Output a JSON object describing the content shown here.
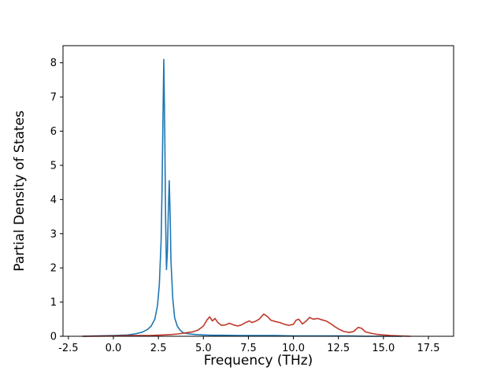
{
  "chart_data": {
    "type": "line",
    "title": "",
    "xlabel": "Frequency (THz)",
    "ylabel": "Partial Density of States",
    "xlim": [
      -2.8,
      18.9
    ],
    "ylim": [
      0,
      8.5
    ],
    "grid": false,
    "legend_position": "none",
    "xticks": [
      -2.5,
      0.0,
      2.5,
      5.0,
      7.5,
      10.0,
      12.5,
      15.0,
      17.5
    ],
    "xtick_labels": [
      "-2.5",
      "0.0",
      "2.5",
      "5.0",
      "7.5",
      "10.0",
      "12.5",
      "15.0",
      "17.5"
    ],
    "yticks": [
      0,
      1,
      2,
      3,
      4,
      5,
      6,
      7,
      8
    ],
    "ytick_labels": [
      "0",
      "1",
      "2",
      "3",
      "4",
      "5",
      "6",
      "7",
      "8"
    ],
    "colors": {
      "series_blue": "#1f77b4",
      "series_red": "#c0392b",
      "axis": "#000000"
    },
    "series": [
      {
        "name": "blue",
        "color": "#1f77b4",
        "points": [
          [
            -1.7,
            0.0
          ],
          [
            -1.0,
            0.01
          ],
          [
            0.0,
            0.02
          ],
          [
            0.8,
            0.04
          ],
          [
            1.2,
            0.07
          ],
          [
            1.6,
            0.12
          ],
          [
            1.9,
            0.2
          ],
          [
            2.1,
            0.3
          ],
          [
            2.3,
            0.5
          ],
          [
            2.45,
            0.9
          ],
          [
            2.55,
            1.5
          ],
          [
            2.65,
            2.8
          ],
          [
            2.7,
            4.2
          ],
          [
            2.75,
            6.3
          ],
          [
            2.8,
            8.1
          ],
          [
            2.85,
            6.2
          ],
          [
            2.9,
            3.4
          ],
          [
            2.95,
            1.95
          ],
          [
            3.0,
            2.5
          ],
          [
            3.05,
            3.6
          ],
          [
            3.1,
            4.55
          ],
          [
            3.15,
            3.6
          ],
          [
            3.2,
            2.2
          ],
          [
            3.3,
            1.1
          ],
          [
            3.4,
            0.55
          ],
          [
            3.55,
            0.3
          ],
          [
            3.7,
            0.18
          ],
          [
            3.9,
            0.1
          ],
          [
            4.2,
            0.07
          ],
          [
            4.6,
            0.05
          ],
          [
            5.0,
            0.04
          ],
          [
            5.5,
            0.03
          ],
          [
            6.0,
            0.03
          ],
          [
            7.0,
            0.02
          ],
          [
            8.0,
            0.02
          ],
          [
            9.0,
            0.02
          ],
          [
            10.0,
            0.01
          ],
          [
            11.0,
            0.01
          ],
          [
            12.0,
            0.01
          ],
          [
            13.0,
            0.01
          ],
          [
            14.0,
            0.0
          ],
          [
            15.0,
            0.0
          ],
          [
            16.0,
            0.0
          ]
        ]
      },
      {
        "name": "red",
        "color": "#c0392b",
        "points": [
          [
            -1.7,
            0.0
          ],
          [
            0.0,
            0.01
          ],
          [
            1.0,
            0.02
          ],
          [
            2.0,
            0.02
          ],
          [
            2.8,
            0.04
          ],
          [
            3.2,
            0.05
          ],
          [
            3.6,
            0.07
          ],
          [
            4.0,
            0.1
          ],
          [
            4.4,
            0.13
          ],
          [
            4.7,
            0.18
          ],
          [
            5.0,
            0.3
          ],
          [
            5.2,
            0.48
          ],
          [
            5.35,
            0.57
          ],
          [
            5.5,
            0.45
          ],
          [
            5.65,
            0.52
          ],
          [
            5.8,
            0.4
          ],
          [
            6.0,
            0.32
          ],
          [
            6.2,
            0.33
          ],
          [
            6.45,
            0.38
          ],
          [
            6.7,
            0.33
          ],
          [
            6.9,
            0.3
          ],
          [
            7.1,
            0.33
          ],
          [
            7.35,
            0.4
          ],
          [
            7.55,
            0.45
          ],
          [
            7.7,
            0.4
          ],
          [
            7.9,
            0.44
          ],
          [
            8.1,
            0.5
          ],
          [
            8.35,
            0.65
          ],
          [
            8.55,
            0.58
          ],
          [
            8.75,
            0.47
          ],
          [
            9.0,
            0.43
          ],
          [
            9.25,
            0.4
          ],
          [
            9.5,
            0.35
          ],
          [
            9.75,
            0.32
          ],
          [
            10.0,
            0.35
          ],
          [
            10.15,
            0.47
          ],
          [
            10.3,
            0.5
          ],
          [
            10.5,
            0.36
          ],
          [
            10.7,
            0.44
          ],
          [
            10.9,
            0.55
          ],
          [
            11.1,
            0.5
          ],
          [
            11.35,
            0.52
          ],
          [
            11.6,
            0.48
          ],
          [
            11.85,
            0.44
          ],
          [
            12.1,
            0.36
          ],
          [
            12.3,
            0.28
          ],
          [
            12.55,
            0.2
          ],
          [
            12.8,
            0.14
          ],
          [
            13.1,
            0.11
          ],
          [
            13.35,
            0.14
          ],
          [
            13.6,
            0.26
          ],
          [
            13.8,
            0.23
          ],
          [
            14.0,
            0.13
          ],
          [
            14.3,
            0.09
          ],
          [
            14.6,
            0.06
          ],
          [
            15.0,
            0.04
          ],
          [
            15.4,
            0.02
          ],
          [
            15.9,
            0.01
          ],
          [
            16.5,
            0.0
          ]
        ]
      }
    ]
  }
}
